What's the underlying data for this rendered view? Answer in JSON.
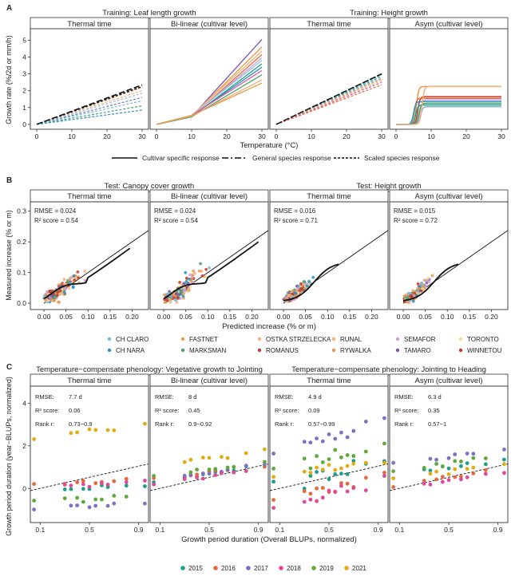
{
  "chart_data": [
    {
      "type": "line",
      "panel_label": "A",
      "xlabel": "Temperature (°C)",
      "ylabel": "Growth rate (%/2d or mm/h)",
      "groups": [
        {
          "title": "Training: Leaf length growth",
          "facets": [
            {
              "title": "Thermal time",
              "kind": "lin",
              "xlim": [
                0,
                30
              ],
              "ylim": [
                -0.1,
                5.4
              ],
              "xticks": [
                0,
                10,
                20,
                30
              ],
              "yticks": [
                0,
                1,
                2,
                3,
                4,
                5
              ],
              "dashed_end_values": [
                2.35,
                2.2,
                2.0,
                1.85,
                1.6,
                1.4,
                1.1,
                0.85
              ],
              "dashed_colors": [
                "#111111",
                "#e9994a",
                "#f2b27a",
                "#9ac4de",
                "#6f7ec2",
                "#7bb8d6",
                "#4aa36a",
                "#2a8fc4"
              ],
              "mid_dash_end": 2.25
            },
            {
              "title": "Bi-linear (cultivar level)",
              "kind": "bilin",
              "xlim": [
                0,
                30
              ],
              "ylim": [
                -0.1,
                5.4
              ],
              "xticks": [
                0,
                10,
                20,
                30
              ],
              "yticks": [],
              "breakpoint": [
                10,
                0.45
              ],
              "end_values": [
                5.05,
                4.6,
                4.35,
                4.15,
                3.95,
                3.8,
                3.6,
                3.4,
                3.2,
                2.95,
                2.65,
                2.45
              ],
              "line_colors": [
                "#7b52ae",
                "#e9994a",
                "#f2b27a",
                "#e36a3d",
                "#c9a0d6",
                "#9ac4de",
                "#1f9e89",
                "#2a8fc4",
                "#e05c9a",
                "#4aa36a",
                "#f2b27a",
                "#e9994a"
              ]
            }
          ]
        },
        {
          "title": "Training: Height growth",
          "facets": [
            {
              "title": "Thermal time",
              "kind": "lin",
              "xlim": [
                0,
                30
              ],
              "ylim": [
                -0.1,
                5.4
              ],
              "xticks": [
                0,
                10,
                20,
                30
              ],
              "yticks": [],
              "dashed_end_values": [
                3.0,
                2.95,
                2.85,
                2.75,
                2.7,
                2.6,
                2.5,
                2.35
              ],
              "dashed_colors": [
                "#111111",
                "#4aa36a",
                "#2a8fc4",
                "#7bb8d6",
                "#e9994a",
                "#f2b27a",
                "#e05c9a",
                "#e36a3d"
              ],
              "mid_dash_end": 3.0
            },
            {
              "title": "Asym (cultivar level)",
              "kind": "asym",
              "xlim": [
                0,
                30
              ],
              "ylim": [
                -0.1,
                5.4
              ],
              "xticks": [
                0,
                10,
                20,
                30
              ],
              "yticks": [],
              "asymptotes": [
                2.25,
                1.65,
                1.55,
                1.45,
                1.35,
                1.25,
                1.15,
                1.05,
                2.25
              ],
              "onsets": [
                5.8,
                6.2,
                5.2,
                6.8,
                5.0,
                6.5,
                5.6,
                7.0,
                7.4
              ],
              "line_colors": [
                "#e9994a",
                "#c33a2a",
                "#e36a3d",
                "#c9a0d6",
                "#2a8fc4",
                "#4aa36a",
                "#1f9e89",
                "#7bb8d6",
                "#f2b27a"
              ]
            }
          ]
        }
      ],
      "legend": {
        "entries": [
          "Cultivar specific response",
          "General species response",
          "Scaled species response"
        ]
      }
    },
    {
      "type": "scatter",
      "panel_label": "B",
      "xlabel": "Predicted increase (% or m)",
      "ylabel": "Measured increase (% or m)",
      "groups": [
        {
          "title": "Test: Canopy cover growth",
          "facets": [
            {
              "title": "Thermal time",
              "rmse": "RMSE = 0.024",
              "r2": "R² score = 0.54",
              "xmax_data": 0.2
            },
            {
              "title": "Bi-linear (cultivar level)",
              "rmse": "RMSE = 0.024",
              "r2": "R² score = 0.54",
              "xmax_data": 0.22
            }
          ]
        },
        {
          "title": "Test: Height growth",
          "facets": [
            {
              "title": "Thermal time",
              "rmse": "RMSE = 0.016",
              "r2": "R² score = 0.71",
              "xmax_data": 0.15
            },
            {
              "title": "Asym (cultivar level)",
              "rmse": "RMSE = 0.015",
              "r2": "R² score = 0.72",
              "xmax_data": 0.15
            }
          ]
        }
      ],
      "xlim": [
        -0.02,
        0.23
      ],
      "ylim": [
        -0.01,
        0.32
      ],
      "xticks": [
        0.0,
        0.05,
        0.1,
        0.15,
        0.2
      ],
      "xtick_labels": [
        "0.00",
        "0.05",
        "0.10",
        "0.15",
        "0.20"
      ],
      "yticks": [
        0.0,
        0.1,
        0.2,
        0.3
      ],
      "ytick_labels": [
        "0.0",
        "0.1",
        "0.2",
        "0.3"
      ],
      "legend": {
        "entries": [
          {
            "name": "CH CLARO",
            "color": "#7bb8d6"
          },
          {
            "name": "FASTNET",
            "color": "#e9994a"
          },
          {
            "name": "OSTKA STRZELECKA",
            "color": "#f2b27a"
          },
          {
            "name": "RUNAL",
            "color": "#f2b27a"
          },
          {
            "name": "SEMAFOR",
            "color": "#c9a0d6"
          },
          {
            "name": "TORONTO",
            "color": "#f7d79a"
          },
          {
            "name": "CH NARA",
            "color": "#2a8fc4"
          },
          {
            "name": "MARKSMAN",
            "color": "#4aa36a"
          },
          {
            "name": "ROMANUS",
            "color": "#c33a2a"
          },
          {
            "name": "RYWALKA",
            "color": "#e9994a"
          },
          {
            "name": "TAMARO",
            "color": "#7b52ae"
          },
          {
            "name": "WINNETOU",
            "color": "#c33a2a"
          }
        ]
      }
    },
    {
      "type": "scatter",
      "panel_label": "C",
      "xlabel": "Growth period duration (Overall BLUPs, normalized)",
      "ylabel": "Growth period duration (year−BLUPs, normalized)",
      "groups": [
        {
          "title": "Temperature−compensate phenology: Vegetative growth to Jointing",
          "facets": [
            {
              "title": "Thermal time",
              "stats": {
                "rmse_label": "RMSE:",
                "rmse": "7.7 d",
                "r2_label": "R² score:",
                "r2": "0.06",
                "rank_label": "Rank r:",
                "rank": "0.73−0.9"
              }
            },
            {
              "title": "Bi-linear (cultivar level)",
              "stats": {
                "rmse_label": "RMSE:",
                "rmse": "8 d",
                "r2_label": "R² score:",
                "r2": "0.45",
                "rank_label": "Rank r:",
                "rank": "0.9−0.92"
              }
            }
          ]
        },
        {
          "title": "Temperature−compensate phenology: Jointing to Heading",
          "facets": [
            {
              "title": "Thermal time",
              "stats": {
                "rmse_label": "RMSE:",
                "rmse": "4.9 d",
                "r2_label": "R² score:",
                "r2": "0.09",
                "rank_label": "Rank r:",
                "rank": "0.57−0.99"
              }
            },
            {
              "title": "Asym (cultivar level)",
              "stats": {
                "rmse_label": "RMSE:",
                "rmse": "6.3 d",
                "r2_label": "R² score:",
                "r2": "0.35",
                "rank_label": "Rank r:",
                "rank": "0.57−1"
              }
            }
          ]
        }
      ],
      "xlim": [
        0.02,
        0.98
      ],
      "ylim": [
        -1.6,
        4.8
      ],
      "xticks": [
        0.1,
        0.5,
        0.9
      ],
      "xtick_labels": [
        "0.1",
        "0.5",
        "0.9"
      ],
      "yticks": [
        0,
        2,
        4
      ],
      "ytick_labels": [
        "0",
        "2",
        "4"
      ],
      "legend": {
        "entries": [
          {
            "name": "2015",
            "color": "#1f9e89"
          },
          {
            "name": "2016",
            "color": "#e36a3d"
          },
          {
            "name": "2017",
            "color": "#7b72c4"
          },
          {
            "name": "2018",
            "color": "#e0489a"
          },
          {
            "name": "2019",
            "color": "#5fa83c"
          },
          {
            "name": "2021",
            "color": "#e2ab12"
          }
        ]
      }
    }
  ]
}
